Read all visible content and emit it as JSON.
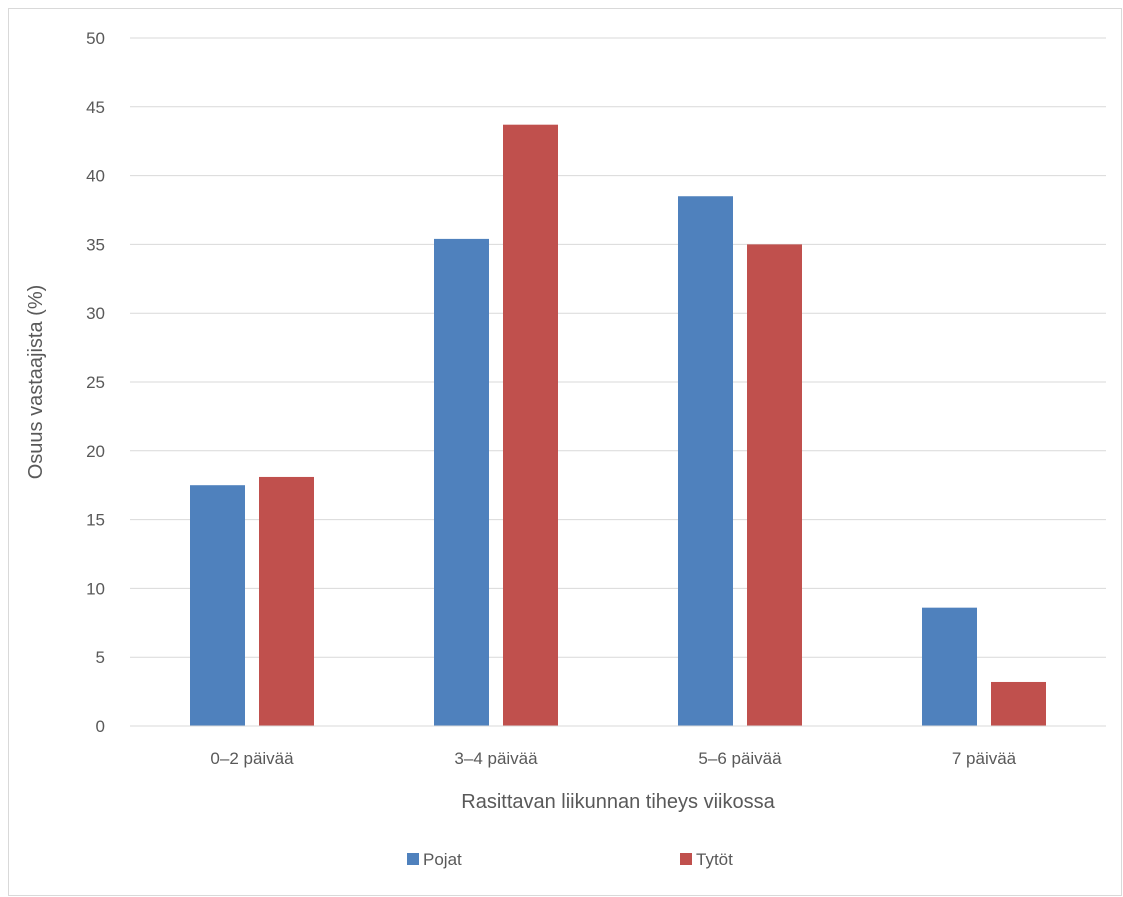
{
  "chart_data": {
    "type": "bar",
    "title": "",
    "xlabel": "Rasittavan liikunnan tiheys viikossa",
    "ylabel": "Osuus vastaajista (%)",
    "categories": [
      "0–2 päivää",
      "3–4 päivää",
      "5–6 päivää",
      "7 päivää"
    ],
    "series": [
      {
        "name": "Pojat",
        "color": "#4F81BD",
        "values": [
          17.5,
          35.4,
          38.5,
          8.6
        ]
      },
      {
        "name": "Tytöt",
        "color": "#C0504D",
        "values": [
          18.1,
          43.7,
          35.0,
          3.2
        ]
      }
    ],
    "ylim": [
      0,
      50
    ],
    "yticks": [
      "0",
      "5",
      "10",
      "15",
      "20",
      "25",
      "30",
      "35",
      "40",
      "45",
      "50"
    ],
    "grid": true,
    "legend_position": "bottom"
  }
}
